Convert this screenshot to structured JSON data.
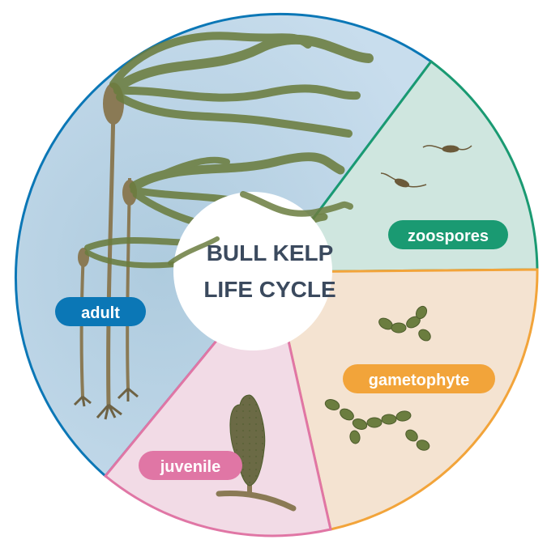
{
  "title": {
    "line1": "BULL KELP",
    "line2": "LIFE CYCLE"
  },
  "stages": {
    "adult": {
      "label": "adult",
      "color": "#0b77b6",
      "fill": "#c4dbea"
    },
    "zoospores": {
      "label": "zoospores",
      "color": "#1a9a72",
      "fill": "#cfe6df"
    },
    "gametophyte": {
      "label": "gametophyte",
      "color": "#f2a43a",
      "fill": "#f4e3d1"
    },
    "juvenile": {
      "label": "juvenile",
      "color": "#e076a5",
      "fill": "#f2dbe6"
    }
  },
  "colors": {
    "kelp": "#6b7d3f",
    "kelp_dark": "#4d5c2c",
    "stipe": "#8a7a55",
    "center_text": "#3b4a5e"
  }
}
